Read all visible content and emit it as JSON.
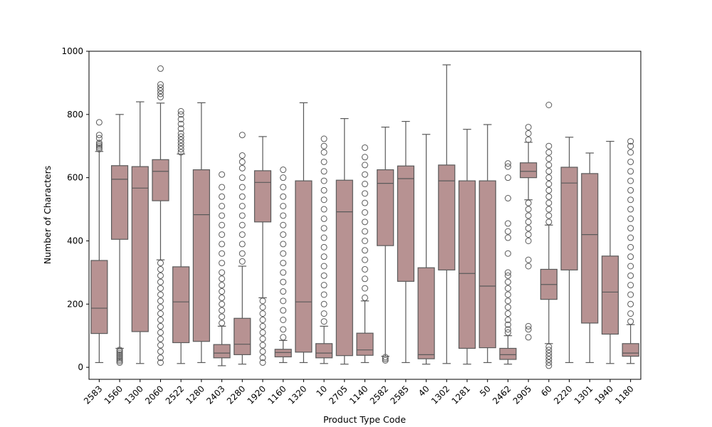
{
  "chart_data": {
    "type": "box",
    "title": "",
    "xlabel": "Product Type Code",
    "ylabel": "Number of Characters",
    "ylim": [
      -38,
      1000
    ],
    "yticks": [
      0,
      200,
      400,
      600,
      800,
      1000
    ],
    "grid": false,
    "box_color": "#b79292",
    "line_color": "#5a5a5a",
    "categories": [
      "2583",
      "1560",
      "1300",
      "2060",
      "2522",
      "1280",
      "2403",
      "2280",
      "1920",
      "1160",
      "1320",
      "10",
      "2705",
      "1140",
      "2582",
      "2585",
      "40",
      "1302",
      "1281",
      "50",
      "2462",
      "2905",
      "60",
      "2220",
      "1301",
      "1940",
      "1180"
    ],
    "boxes": [
      {
        "category": "2583",
        "whisker_low": 15,
        "q1": 107,
        "median": 187,
        "q3": 338,
        "whisker_high": 683,
        "outliers": [
          690,
          695,
          700,
          705,
          710,
          725,
          735,
          775
        ]
      },
      {
        "category": "1560",
        "whisker_low": 60,
        "q1": 405,
        "median": 595,
        "q3": 638,
        "whisker_high": 800,
        "outliers": [
          15,
          20,
          25,
          30,
          35,
          40,
          45,
          50,
          55
        ]
      },
      {
        "category": "1300",
        "whisker_low": 12,
        "q1": 113,
        "median": 567,
        "q3": 635,
        "whisker_high": 840,
        "outliers": []
      },
      {
        "category": "2060",
        "whisker_low": 340,
        "q1": 527,
        "median": 620,
        "q3": 657,
        "whisker_high": 836,
        "outliers": [
          15,
          30,
          50,
          70,
          90,
          110,
          130,
          150,
          170,
          190,
          210,
          230,
          250,
          270,
          290,
          310,
          330,
          855,
          865,
          875,
          885,
          895,
          945
        ]
      },
      {
        "category": "2522",
        "whisker_low": 12,
        "q1": 78,
        "median": 207,
        "q3": 318,
        "whisker_high": 675,
        "outliers": [
          680,
          690,
          700,
          710,
          720,
          730,
          740,
          755,
          770,
          785,
          800,
          810
        ]
      },
      {
        "category": "1280",
        "whisker_low": 15,
        "q1": 82,
        "median": 483,
        "q3": 625,
        "whisker_high": 837,
        "outliers": []
      },
      {
        "category": "2403",
        "whisker_low": 5,
        "q1": 30,
        "median": 45,
        "q3": 72,
        "whisker_high": 130,
        "outliers": [
          140,
          160,
          180,
          200,
          220,
          240,
          260,
          280,
          300,
          330,
          360,
          390,
          420,
          450,
          480,
          510,
          540,
          570,
          610
        ]
      },
      {
        "category": "2280",
        "whisker_low": 10,
        "q1": 40,
        "median": 73,
        "q3": 155,
        "whisker_high": 320,
        "outliers": [
          335,
          360,
          390,
          420,
          450,
          480,
          510,
          540,
          570,
          600,
          630,
          650,
          670,
          735
        ]
      },
      {
        "category": "1920",
        "whisker_low": 220,
        "q1": 460,
        "median": 585,
        "q3": 622,
        "whisker_high": 730,
        "outliers": [
          15,
          30,
          50,
          70,
          90,
          110,
          130,
          150,
          170,
          190,
          210
        ]
      },
      {
        "category": "1160",
        "whisker_low": 15,
        "q1": 33,
        "median": 47,
        "q3": 57,
        "whisker_high": 85,
        "outliers": [
          95,
          120,
          150,
          180,
          210,
          240,
          270,
          300,
          330,
          360,
          390,
          420,
          450,
          480,
          510,
          540,
          570,
          600,
          625
        ]
      },
      {
        "category": "1320",
        "whisker_low": 15,
        "q1": 48,
        "median": 207,
        "q3": 590,
        "whisker_high": 837,
        "outliers": []
      },
      {
        "category": "10",
        "whisker_low": 12,
        "q1": 30,
        "median": 45,
        "q3": 75,
        "whisker_high": 130,
        "outliers": [
          145,
          170,
          200,
          230,
          260,
          290,
          320,
          350,
          380,
          410,
          440,
          470,
          500,
          530,
          560,
          590,
          620,
          650,
          680,
          700,
          723
        ]
      },
      {
        "category": "2705",
        "whisker_low": 10,
        "q1": 37,
        "median": 492,
        "q3": 592,
        "whisker_high": 787,
        "outliers": []
      },
      {
        "category": "1140",
        "whisker_low": 15,
        "q1": 38,
        "median": 55,
        "q3": 108,
        "whisker_high": 210,
        "outliers": [
          220,
          250,
          280,
          310,
          340,
          370,
          400,
          430,
          460,
          490,
          520,
          550,
          580,
          610,
          640,
          665,
          695
        ]
      },
      {
        "category": "2582",
        "whisker_low": 35,
        "q1": 385,
        "median": 582,
        "q3": 625,
        "whisker_high": 760,
        "outliers": [
          22,
          27,
          32
        ]
      },
      {
        "category": "2585",
        "whisker_low": 15,
        "q1": 272,
        "median": 597,
        "q3": 637,
        "whisker_high": 778,
        "outliers": []
      },
      {
        "category": "40",
        "whisker_low": 10,
        "q1": 27,
        "median": 40,
        "q3": 315,
        "whisker_high": 737,
        "outliers": []
      },
      {
        "category": "1302",
        "whisker_low": 12,
        "q1": 308,
        "median": 590,
        "q3": 640,
        "whisker_high": 957,
        "outliers": []
      },
      {
        "category": "1281",
        "whisker_low": 10,
        "q1": 60,
        "median": 297,
        "q3": 590,
        "whisker_high": 753,
        "outliers": []
      },
      {
        "category": "50",
        "whisker_low": 15,
        "q1": 62,
        "median": 257,
        "q3": 590,
        "whisker_high": 768,
        "outliers": []
      },
      {
        "category": "2462",
        "whisker_low": 10,
        "q1": 25,
        "median": 40,
        "q3": 60,
        "whisker_high": 100,
        "outliers": [
          110,
          120,
          135,
          150,
          170,
          190,
          210,
          230,
          250,
          270,
          290,
          300,
          360,
          410,
          430,
          455,
          535,
          600,
          635,
          645
        ]
      },
      {
        "category": "2905",
        "whisker_low": 530,
        "q1": 600,
        "median": 620,
        "q3": 647,
        "whisker_high": 712,
        "outliers": [
          95,
          120,
          130,
          320,
          340,
          400,
          420,
          440,
          460,
          480,
          500,
          520,
          720,
          740,
          760
        ]
      },
      {
        "category": "60",
        "whisker_low": 75,
        "q1": 215,
        "median": 262,
        "q3": 310,
        "whisker_high": 450,
        "outliers": [
          5,
          15,
          25,
          35,
          45,
          55,
          65,
          460,
          480,
          500,
          520,
          540,
          560,
          580,
          600,
          620,
          640,
          660,
          680,
          700,
          830
        ]
      },
      {
        "category": "2220",
        "whisker_low": 15,
        "q1": 308,
        "median": 583,
        "q3": 633,
        "whisker_high": 728,
        "outliers": []
      },
      {
        "category": "1301",
        "whisker_low": 15,
        "q1": 140,
        "median": 420,
        "q3": 613,
        "whisker_high": 678,
        "outliers": []
      },
      {
        "category": "1940",
        "whisker_low": 12,
        "q1": 105,
        "median": 238,
        "q3": 352,
        "whisker_high": 715,
        "outliers": []
      },
      {
        "category": "1180",
        "whisker_low": 12,
        "q1": 35,
        "median": 45,
        "q3": 75,
        "whisker_high": 135,
        "outliers": [
          145,
          170,
          200,
          230,
          260,
          290,
          320,
          350,
          380,
          410,
          440,
          470,
          500,
          530,
          560,
          590,
          620,
          650,
          680,
          700,
          715
        ]
      }
    ]
  }
}
